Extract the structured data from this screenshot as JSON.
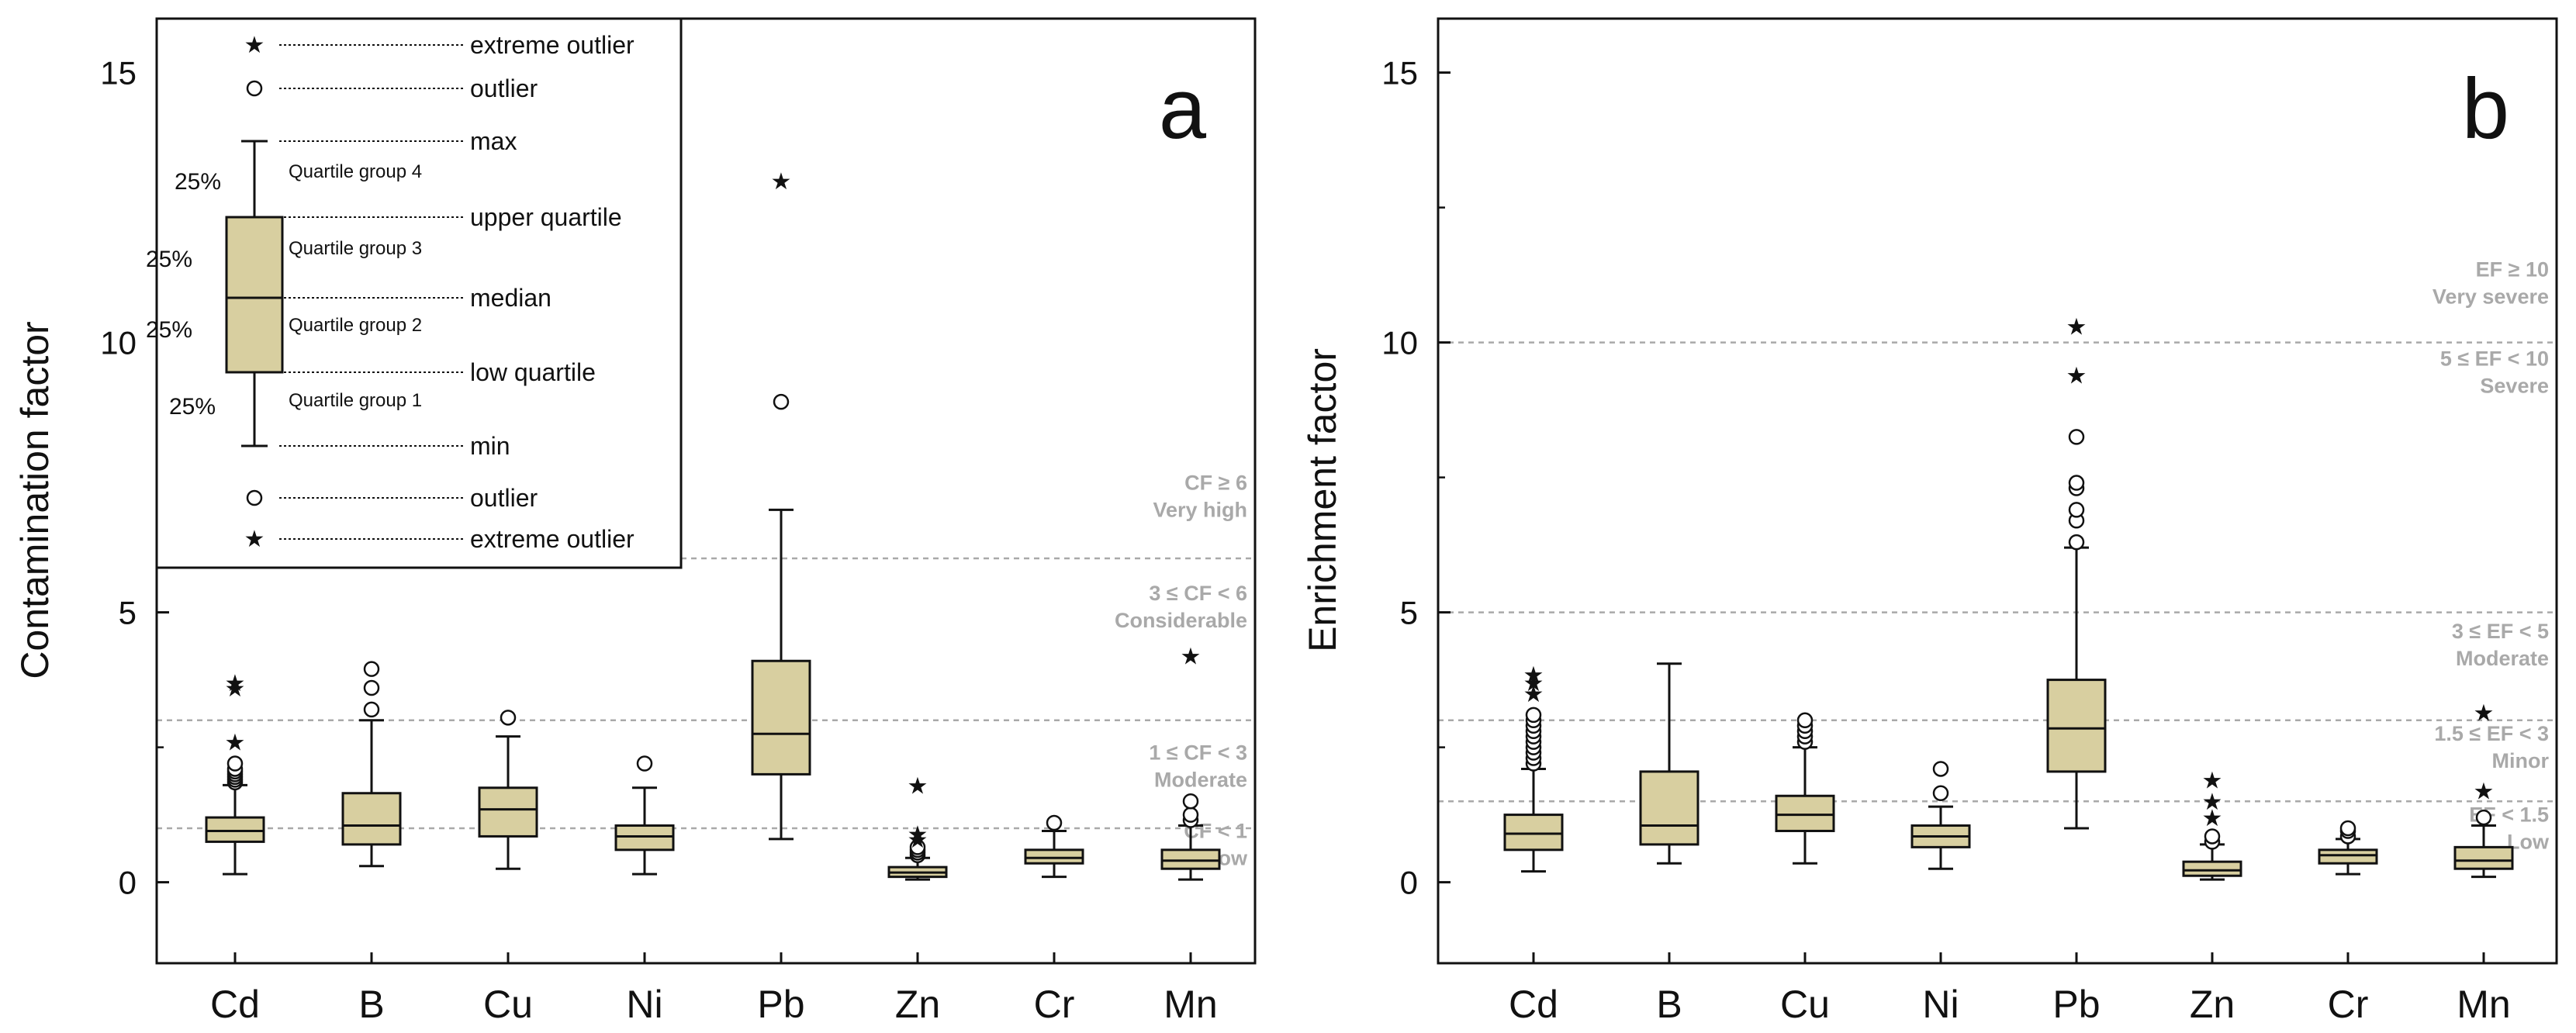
{
  "colors": {
    "box_fill": "#d8cfa0",
    "stroke": "#111111",
    "threshold": "#a9a9a9"
  },
  "chart_data": [
    {
      "type": "boxplot",
      "panel": "a",
      "ylabel": "Contamination factor",
      "ylim": [
        -1.5,
        16
      ],
      "yticks": [
        0,
        5,
        10,
        15
      ],
      "categories": [
        "Cd",
        "B",
        "Cu",
        "Ni",
        "Pb",
        "Zn",
        "Cr",
        "Mn"
      ],
      "boxes": [
        {
          "category": "Cd",
          "min": 0.15,
          "q1": 0.75,
          "median": 0.95,
          "q3": 1.2,
          "max": 1.8,
          "outliers": [
            1.85,
            1.9,
            1.95,
            2.0,
            2.05,
            2.1,
            2.2
          ],
          "extremes": [
            2.6,
            3.6,
            3.7
          ]
        },
        {
          "category": "B",
          "min": 0.3,
          "q1": 0.7,
          "median": 1.05,
          "q3": 1.65,
          "max": 3.0,
          "outliers": [
            3.2,
            3.6,
            3.95
          ],
          "extremes": []
        },
        {
          "category": "Cu",
          "min": 0.25,
          "q1": 0.85,
          "median": 1.35,
          "q3": 1.75,
          "max": 2.7,
          "outliers": [
            3.05
          ],
          "extremes": []
        },
        {
          "category": "Ni",
          "min": 0.15,
          "q1": 0.6,
          "median": 0.85,
          "q3": 1.05,
          "max": 1.75,
          "outliers": [
            2.2
          ],
          "extremes": []
        },
        {
          "category": "Pb",
          "min": 0.8,
          "q1": 2.0,
          "median": 2.75,
          "q3": 4.1,
          "max": 6.9,
          "outliers": [
            8.9
          ],
          "extremes": [
            13.0
          ]
        },
        {
          "category": "Zn",
          "min": 0.05,
          "q1": 0.1,
          "median": 0.18,
          "q3": 0.28,
          "max": 0.45,
          "outliers": [
            0.5,
            0.55,
            0.6,
            0.65
          ],
          "extremes": [
            0.8,
            0.9,
            1.8
          ]
        },
        {
          "category": "Cr",
          "min": 0.1,
          "q1": 0.35,
          "median": 0.45,
          "q3": 0.6,
          "max": 0.95,
          "outliers": [
            1.1
          ],
          "extremes": []
        },
        {
          "category": "Mn",
          "min": 0.05,
          "q1": 0.25,
          "median": 0.4,
          "q3": 0.6,
          "max": 1.05,
          "outliers": [
            1.15,
            1.25,
            1.5
          ],
          "extremes": [
            4.2
          ]
        }
      ],
      "thresholds": [
        1,
        3,
        6
      ],
      "class_labels": [
        {
          "line1": "CF < 1",
          "line2": "Low",
          "y1": 0.95,
          "y2": 0.45
        },
        {
          "line1": "1 ≤ CF < 3",
          "line2": "Moderate",
          "y1": 2.4,
          "y2": 1.9
        },
        {
          "line1": "3 ≤ CF < 6",
          "line2": "Considerable",
          "y1": 5.35,
          "y2": 4.85
        },
        {
          "line1": "CF ≥ 6",
          "line2": "Very high",
          "y1": 7.4,
          "y2": 6.9
        }
      ],
      "legend": {
        "extreme_outlier": "extreme outlier",
        "outlier": "outlier",
        "max": "max",
        "upper_quartile": "upper quartile",
        "median": "median",
        "low_quartile": "low quartile",
        "min": "min",
        "pct": "25%",
        "group4": "Quartile group 4",
        "group3": "Quartile group 3",
        "group2": "Quartile group 2",
        "group1": "Quartile group 1"
      }
    },
    {
      "type": "boxplot",
      "panel": "b",
      "ylabel": "Enrichment factor",
      "ylim": [
        -1.5,
        16
      ],
      "yticks": [
        0,
        5,
        10,
        15
      ],
      "categories": [
        "Cd",
        "B",
        "Cu",
        "Ni",
        "Pb",
        "Zn",
        "Cr",
        "Mn"
      ],
      "boxes": [
        {
          "category": "Cd",
          "min": 0.2,
          "q1": 0.6,
          "median": 0.9,
          "q3": 1.25,
          "max": 2.1,
          "outliers": [
            2.2,
            2.3,
            2.4,
            2.5,
            2.6,
            2.7,
            2.8,
            2.9,
            3.0,
            3.1
          ],
          "extremes": [
            3.5,
            3.7,
            3.85
          ]
        },
        {
          "category": "B",
          "min": 0.35,
          "q1": 0.7,
          "median": 1.05,
          "q3": 2.05,
          "max": 4.05,
          "outliers": [],
          "extremes": []
        },
        {
          "category": "Cu",
          "min": 0.35,
          "q1": 0.95,
          "median": 1.25,
          "q3": 1.6,
          "max": 2.5,
          "outliers": [
            2.6,
            2.7,
            2.8,
            2.9,
            3.0
          ],
          "extremes": []
        },
        {
          "category": "Ni",
          "min": 0.25,
          "q1": 0.65,
          "median": 0.85,
          "q3": 1.05,
          "max": 1.4,
          "outliers": [
            1.65,
            2.1
          ],
          "extremes": []
        },
        {
          "category": "Pb",
          "min": 1.0,
          "q1": 2.05,
          "median": 2.85,
          "q3": 3.75,
          "max": 6.2,
          "outliers": [
            6.3,
            6.7,
            6.9,
            7.3,
            7.4,
            8.25
          ],
          "extremes": [
            9.4,
            10.3
          ]
        },
        {
          "category": "Zn",
          "min": 0.05,
          "q1": 0.12,
          "median": 0.22,
          "q3": 0.38,
          "max": 0.7,
          "outliers": [
            0.75,
            0.85
          ],
          "extremes": [
            1.2,
            1.5,
            1.9
          ]
        },
        {
          "category": "Cr",
          "min": 0.15,
          "q1": 0.35,
          "median": 0.5,
          "q3": 0.6,
          "max": 0.8,
          "outliers": [
            0.85,
            0.95,
            1.0
          ],
          "extremes": []
        },
        {
          "category": "Mn",
          "min": 0.1,
          "q1": 0.25,
          "median": 0.4,
          "q3": 0.65,
          "max": 1.05,
          "outliers": [
            1.2
          ],
          "extremes": [
            1.7,
            3.15
          ]
        }
      ],
      "thresholds": [
        1.5,
        3,
        5,
        10
      ],
      "class_labels": [
        {
          "line1": "EF < 1.5",
          "line2": "Low",
          "y1": 1.25,
          "y2": 0.75
        },
        {
          "line1": "1.5 ≤ EF < 3",
          "line2": "Minor",
          "y1": 2.75,
          "y2": 2.25
        },
        {
          "line1": "3 ≤ EF < 5",
          "line2": "Moderate",
          "y1": 4.65,
          "y2": 4.15
        },
        {
          "line1": "5 ≤ EF < 10",
          "line2": "Severe",
          "y1": 9.7,
          "y2": 9.2
        },
        {
          "line1": "EF ≥ 10",
          "line2": "Very severe",
          "y1": 11.35,
          "y2": 10.85
        }
      ]
    }
  ]
}
